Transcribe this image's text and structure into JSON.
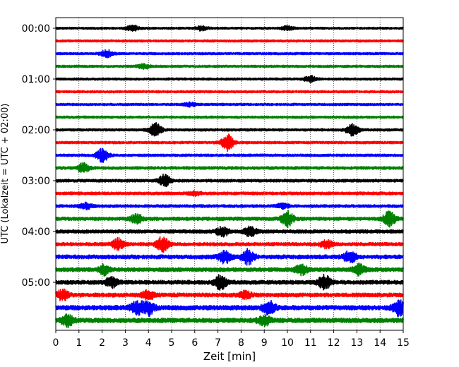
{
  "chart_data": {
    "type": "line",
    "subtype": "helicorder",
    "xlabel": "Zeit  [min]",
    "ylabel": "UTC (Lokalzeit = UTC + 02:00)",
    "xlim": [
      0,
      15
    ],
    "x_ticks": [
      0,
      1,
      2,
      3,
      4,
      5,
      6,
      7,
      8,
      9,
      10,
      11,
      12,
      13,
      14,
      15
    ],
    "y_tick_labels": [
      "00:00",
      "01:00",
      "02:00",
      "03:00",
      "04:00",
      "05:00"
    ],
    "minutes_per_trace": 15,
    "traces_per_hour": 4,
    "grid": "vertical dotted at each minute",
    "trace_colors": [
      "#000000",
      "#ff0000",
      "#0000ff",
      "#008000"
    ],
    "traces": [
      {
        "start": "00:00",
        "base_amplitude": 0.18,
        "events": [
          [
            3.3,
            0.5
          ],
          [
            6.3,
            0.4
          ],
          [
            10.0,
            0.3
          ]
        ]
      },
      {
        "start": "00:15",
        "base_amplitude": 0.2,
        "events": []
      },
      {
        "start": "00:30",
        "base_amplitude": 0.2,
        "events": [
          [
            2.2,
            0.6
          ]
        ]
      },
      {
        "start": "00:45",
        "base_amplitude": 0.2,
        "events": [
          [
            3.8,
            0.4
          ]
        ]
      },
      {
        "start": "01:00",
        "base_amplitude": 0.2,
        "events": [
          [
            11.0,
            0.5
          ]
        ]
      },
      {
        "start": "01:15",
        "base_amplitude": 0.2,
        "events": []
      },
      {
        "start": "01:30",
        "base_amplitude": 0.2,
        "events": [
          [
            5.8,
            0.3
          ]
        ]
      },
      {
        "start": "01:45",
        "base_amplitude": 0.2,
        "events": []
      },
      {
        "start": "02:00",
        "base_amplitude": 0.22,
        "events": [
          [
            4.3,
            1.1
          ],
          [
            12.8,
            1.0
          ]
        ]
      },
      {
        "start": "02:15",
        "base_amplitude": 0.22,
        "events": [
          [
            7.4,
            1.4
          ]
        ]
      },
      {
        "start": "02:30",
        "base_amplitude": 0.22,
        "events": [
          [
            2.0,
            1.2
          ]
        ]
      },
      {
        "start": "02:45",
        "base_amplitude": 0.25,
        "events": [
          [
            1.2,
            0.8
          ]
        ]
      },
      {
        "start": "03:00",
        "base_amplitude": 0.25,
        "events": [
          [
            4.7,
            1.0
          ]
        ]
      },
      {
        "start": "03:15",
        "base_amplitude": 0.25,
        "events": [
          [
            6.0,
            0.3
          ]
        ]
      },
      {
        "start": "03:30",
        "base_amplitude": 0.25,
        "events": [
          [
            1.3,
            0.5
          ],
          [
            9.8,
            0.4
          ]
        ]
      },
      {
        "start": "03:45",
        "base_amplitude": 0.3,
        "events": [
          [
            3.5,
            0.8
          ],
          [
            10.0,
            1.4
          ],
          [
            14.4,
            1.2
          ]
        ]
      },
      {
        "start": "04:00",
        "base_amplitude": 0.3,
        "events": [
          [
            7.2,
            0.8
          ],
          [
            8.4,
            0.8
          ]
        ]
      },
      {
        "start": "04:15",
        "base_amplitude": 0.3,
        "events": [
          [
            2.7,
            0.9
          ],
          [
            4.6,
            1.2
          ],
          [
            11.7,
            0.6
          ]
        ]
      },
      {
        "start": "04:30",
        "base_amplitude": 0.35,
        "events": [
          [
            7.3,
            1.0
          ],
          [
            8.3,
            1.2
          ],
          [
            12.7,
            1.0
          ]
        ]
      },
      {
        "start": "04:45",
        "base_amplitude": 0.35,
        "events": [
          [
            2.1,
            0.8
          ],
          [
            10.6,
            0.8
          ],
          [
            13.1,
            0.8
          ]
        ]
      },
      {
        "start": "05:00",
        "base_amplitude": 0.35,
        "events": [
          [
            2.4,
            0.8
          ],
          [
            7.1,
            1.2
          ],
          [
            11.6,
            1.1
          ]
        ]
      },
      {
        "start": "05:15",
        "base_amplitude": 0.35,
        "events": [
          [
            0.3,
            0.9
          ],
          [
            4.0,
            0.8
          ],
          [
            8.2,
            0.6
          ]
        ]
      },
      {
        "start": "05:30",
        "base_amplitude": 0.4,
        "events": [
          [
            3.5,
            1.1
          ],
          [
            4.0,
            1.2
          ],
          [
            9.2,
            1.2
          ],
          [
            14.8,
            1.3
          ]
        ]
      },
      {
        "start": "05:45",
        "base_amplitude": 0.4,
        "events": [
          [
            0.5,
            0.9
          ],
          [
            9.0,
            0.8
          ]
        ]
      }
    ]
  }
}
